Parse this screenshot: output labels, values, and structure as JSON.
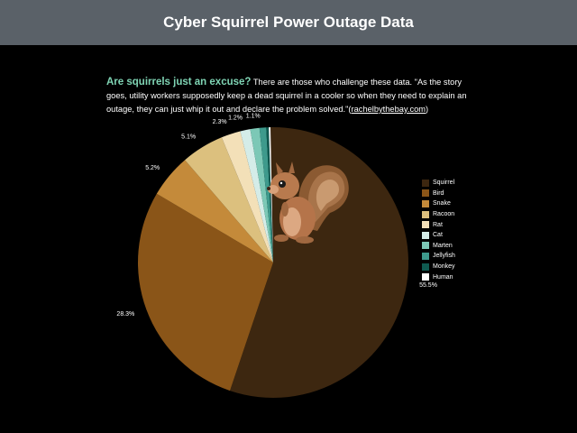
{
  "header": {
    "title": "Cyber Squirrel Power Outage Data"
  },
  "intro": {
    "lead": "Are squirrels just an excuse?",
    "text": " There are those who challenge these data. \"As the story goes, utility workers supposedly keep a dead squirrel in a cooler so when they need to explain an outage, they can just whip it out and declare the problem solved.\"(",
    "link": "rachelbythebay.com",
    "tail": ")"
  },
  "chart_data": {
    "type": "pie",
    "categories": [
      "Squirrel",
      "Bird",
      "Snake",
      "Racoon",
      "Rat",
      "Cat",
      "Marten",
      "Jellyfish",
      "Monkey",
      "Human"
    ],
    "values": [
      55.5,
      28.3,
      5.2,
      5.1,
      2.3,
      1.2,
      1.1,
      0.8,
      0.3,
      0.2
    ],
    "labels": [
      "55.5%",
      "28.3%",
      "5.2%",
      "5.1%",
      "2.3%",
      "1.2%",
      "1.1%",
      "",
      "",
      ""
    ],
    "colors": [
      "#3d2710",
      "#8a5518",
      "#c48a3a",
      "#dcc07e",
      "#f3e0b8",
      "#d4ece8",
      "#7cc8b6",
      "#3e9a8c",
      "#0f5a50",
      "#ffffff"
    ],
    "legend": "right"
  },
  "image": {
    "squirrel_icon": "squirrel-image"
  }
}
